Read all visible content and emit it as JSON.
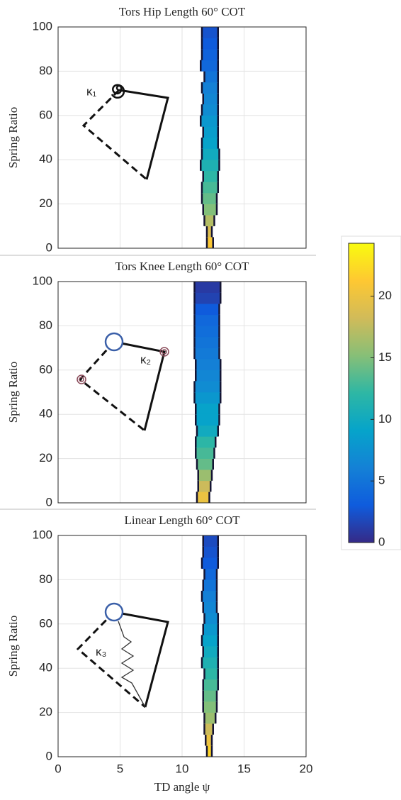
{
  "chart_data": [
    {
      "type": "contour",
      "title": "Tors Hip Length 60° COT",
      "ylabel": "Spring Ratio",
      "annotation": "κ₁",
      "xlim": [
        0,
        20
      ],
      "ylim": [
        0,
        100
      ],
      "xticks": [
        0,
        5,
        10,
        15,
        20
      ],
      "yticks": [
        0,
        20,
        40,
        60,
        80,
        100
      ],
      "grid": true,
      "show_xtick_labels": false,
      "ybins": [
        0,
        5,
        10,
        15,
        20,
        25,
        30,
        35,
        40,
        45,
        50,
        55,
        60,
        65,
        70,
        75,
        80,
        85,
        90,
        95,
        100
      ],
      "x_left": [
        12.0,
        12.0,
        11.8,
        11.7,
        11.6,
        11.6,
        11.7,
        11.5,
        11.6,
        11.6,
        11.7,
        11.5,
        11.6,
        11.7,
        11.6,
        11.8,
        11.5,
        11.6,
        11.6,
        11.6
      ],
      "x_right": [
        12.5,
        12.4,
        12.6,
        12.8,
        12.8,
        12.9,
        12.9,
        13.0,
        13.0,
        12.9,
        12.9,
        12.9,
        12.9,
        12.9,
        12.9,
        12.9,
        12.9,
        12.9,
        12.9,
        12.9
      ],
      "z": [
        21,
        19,
        17,
        15,
        14,
        13,
        12,
        11,
        10,
        9,
        8.5,
        8,
        7,
        6.5,
        6,
        5,
        4,
        3.5,
        3,
        2.5
      ]
    },
    {
      "type": "contour",
      "title": "Tors Knee Length 60° COT",
      "ylabel": "Spring Ratio",
      "annotation": "κ₂",
      "xlim": [
        0,
        20
      ],
      "ylim": [
        0,
        100
      ],
      "xticks": [
        0,
        5,
        10,
        15,
        20
      ],
      "yticks": [
        0,
        20,
        40,
        60,
        80,
        100
      ],
      "grid": true,
      "show_xtick_labels": false,
      "ybins": [
        0,
        5,
        10,
        15,
        20,
        25,
        30,
        35,
        40,
        45,
        50,
        55,
        60,
        65,
        70,
        75,
        80,
        85,
        90,
        95,
        100
      ],
      "x_left": [
        11.2,
        11.3,
        11.3,
        11.2,
        11.1,
        11.1,
        11.2,
        11.1,
        11.1,
        11.0,
        11.0,
        11.1,
        11.1,
        11.0,
        11.0,
        11.0,
        11.0,
        11.0,
        11.0,
        11.0
      ],
      "x_right": [
        12.2,
        12.3,
        12.4,
        12.5,
        12.6,
        12.7,
        12.9,
        13.0,
        13.0,
        13.1,
        13.1,
        13.1,
        13.1,
        13.0,
        13.0,
        13.0,
        13.0,
        13.0,
        13.1,
        13.1
      ],
      "z": [
        20,
        18,
        16,
        14,
        13,
        12,
        10,
        9,
        9,
        8,
        7,
        6.5,
        6,
        5.5,
        5,
        4.5,
        4,
        3,
        1.5,
        1
      ]
    },
    {
      "type": "contour",
      "title": "Linear Length 60° COT",
      "ylabel": "Spring Ratio",
      "xlabel": "TD angle ψ",
      "annotation": "κ₃",
      "xlim": [
        0,
        20
      ],
      "ylim": [
        0,
        100
      ],
      "xticks": [
        0,
        5,
        10,
        15,
        20
      ],
      "yticks": [
        0,
        20,
        40,
        60,
        80,
        100
      ],
      "grid": true,
      "show_xtick_labels": true,
      "ybins": [
        0,
        5,
        10,
        15,
        20,
        25,
        30,
        35,
        40,
        45,
        50,
        55,
        60,
        65,
        70,
        75,
        80,
        85,
        90,
        95,
        100
      ],
      "x_left": [
        12.0,
        11.9,
        11.8,
        11.8,
        11.7,
        11.7,
        11.7,
        11.8,
        11.6,
        11.7,
        11.6,
        11.7,
        11.8,
        11.7,
        11.6,
        11.7,
        11.8,
        11.6,
        11.7,
        11.7
      ],
      "x_right": [
        12.4,
        12.4,
        12.5,
        12.7,
        12.8,
        12.8,
        12.9,
        12.9,
        12.9,
        12.9,
        12.9,
        12.9,
        12.9,
        12.8,
        12.8,
        12.8,
        12.8,
        12.9,
        12.9,
        12.9
      ],
      "z": [
        22,
        20,
        18,
        16,
        15,
        14,
        13,
        12,
        11,
        10,
        9,
        8,
        7,
        6.5,
        6,
        5,
        4,
        3,
        2.5,
        2
      ]
    },
    {
      "type": "colorbar",
      "zlim": [
        0,
        24.3
      ],
      "zticks": [
        0,
        5,
        10,
        15,
        20
      ],
      "colormap": [
        "#352a87",
        "#0f5cdd",
        "#1481d6",
        "#06a4ca",
        "#2eb7a4",
        "#87bf77",
        "#d1bb59",
        "#fec832",
        "#f9fb0e"
      ]
    }
  ]
}
